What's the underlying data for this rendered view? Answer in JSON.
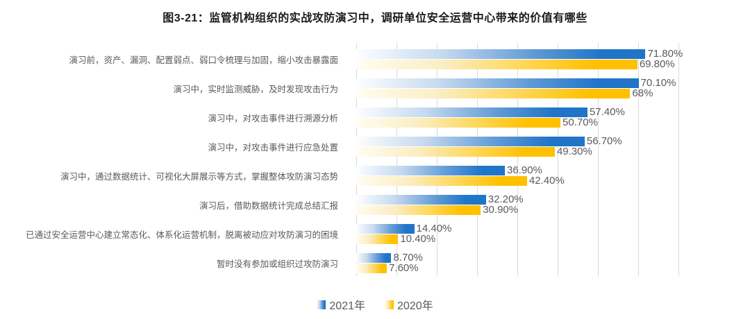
{
  "title": "图3-21：监管机构组织的实战攻防演习中，调研单位安全运营中心带来的价值有哪些",
  "colors": {
    "grid": "#d9d9d9",
    "text_gray": "#595959",
    "title_text": "#1a1a1a",
    "bar_gradient_2021": [
      "#fdfeff",
      "#c5d9ef",
      "#5e99d6",
      "#2075c9"
    ],
    "bar_gradient_2020": [
      "#fffdf2",
      "#fbeec4",
      "#ffd54f",
      "#ffc000"
    ]
  },
  "chart_data": {
    "type": "bar",
    "orientation": "horizontal",
    "title": "图3-21：监管机构组织的实战攻防演习中，调研单位安全运营中心带来的价值有哪些",
    "categories": [
      "演习前，资产、漏洞、配置弱点、弱口令梳理与加固，缩小攻击暴露面",
      "演习中，实时监测威胁，及时发现攻击行为",
      "演习中，对攻击事件进行溯源分析",
      "演习中，对攻击事件进行应急处置",
      "演习中，通过数据统计、可视化大屏展示等方式，掌握整体攻防演习态势",
      "演习后，借助数据统计完成总结汇报",
      "已通过安全运营中心建立常态化、体系化运营机制，脱离被动应对攻防演习的困境",
      "暂时没有参加或组织过攻防演习"
    ],
    "series": [
      {
        "name": "2021年",
        "values": [
          71.8,
          70.1,
          57.4,
          56.7,
          36.9,
          32.2,
          14.4,
          8.7
        ],
        "labels": [
          "71.80%",
          "70.10%",
          "57.40%",
          "56.70%",
          "36.90%",
          "32.20%",
          "14.40%",
          "8.70%"
        ]
      },
      {
        "name": "2020年",
        "values": [
          69.8,
          68,
          50.7,
          49.3,
          42.4,
          30.9,
          10.4,
          7.6
        ],
        "labels": [
          "69.80%",
          "68%",
          "50.70%",
          "49.30%",
          "42.40%",
          "30.90%",
          "10.40%",
          "7.60%"
        ]
      }
    ],
    "xlim": [
      0,
      80
    ],
    "gridline_interval": 10,
    "grid": true,
    "legend_position": "bottom",
    "xlabel": "",
    "ylabel": ""
  }
}
